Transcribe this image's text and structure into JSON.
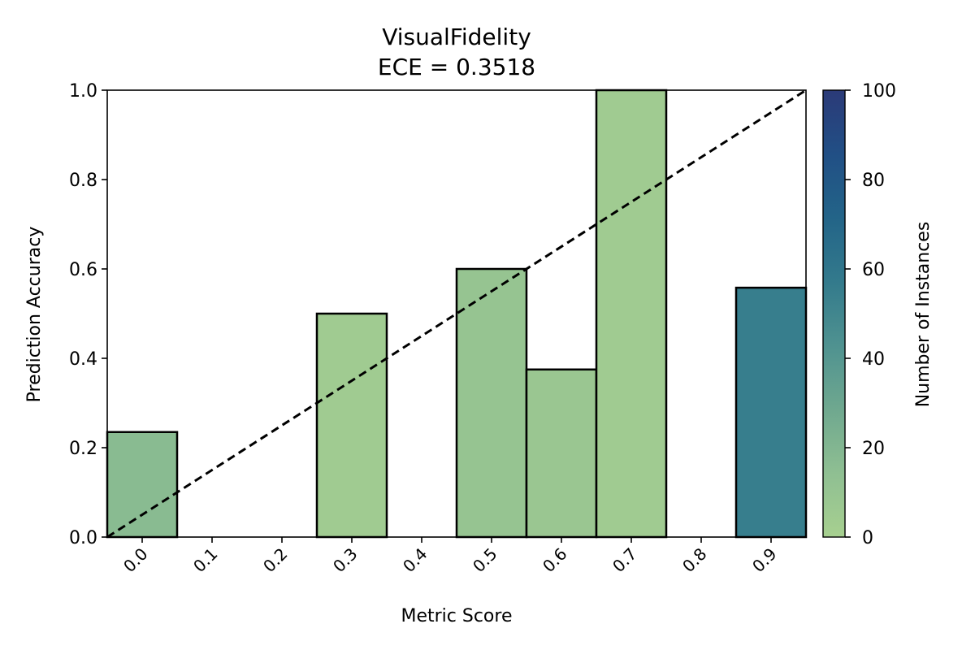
{
  "chart_data": {
    "type": "bar",
    "title": "VisualFidelity",
    "subtitle": "ECE = 0.3518",
    "xlabel": "Metric Score",
    "ylabel": "Prediction Accuracy",
    "xlim": [
      -0.05,
      0.95
    ],
    "ylim": [
      0,
      1
    ],
    "x_ticks": [
      "0.0",
      "0.1",
      "0.2",
      "0.3",
      "0.4",
      "0.5",
      "0.6",
      "0.7",
      "0.8",
      "0.9"
    ],
    "y_ticks": [
      "0.0",
      "0.2",
      "0.4",
      "0.6",
      "0.8",
      "1.0"
    ],
    "bin_width": 0.1,
    "x": [
      0.0,
      0.3,
      0.5,
      0.6,
      0.7,
      0.9
    ],
    "values": [
      0.235,
      0.5,
      0.6,
      0.375,
      1.0,
      0.558
    ],
    "counts": [
      17,
      4,
      10,
      8,
      4,
      55
    ],
    "reference_line": {
      "style": "dashed",
      "color": "#000000",
      "from": [
        -0.05,
        0
      ],
      "to": [
        0.95,
        1
      ]
    },
    "colorbar": {
      "label": "Number of Instances",
      "range": [
        0,
        100
      ],
      "ticks": [
        "0",
        "20",
        "40",
        "60",
        "80",
        "100"
      ],
      "colors": [
        "#a7d090",
        "#8fbf92",
        "#6fa88f",
        "#4f9290",
        "#337a8c",
        "#236488",
        "#214f85",
        "#2b3a78"
      ]
    },
    "bar_edge_color": "#000000"
  }
}
